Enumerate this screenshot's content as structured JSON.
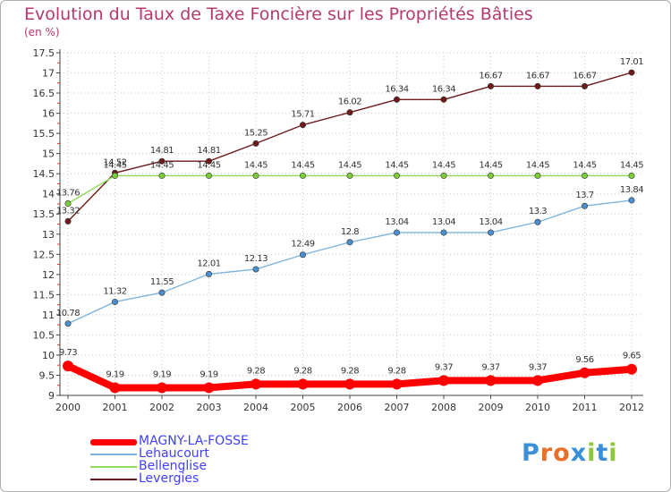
{
  "chart_data": {
    "type": "line",
    "title": "Evolution du Taux de Taxe Foncière sur les Propriétés Bâties",
    "unit": "(en %)",
    "xlabel": "",
    "ylabel": "",
    "ylim": [
      9,
      17.5
    ],
    "yticks": [
      "9",
      "9.5",
      "10",
      "10.5",
      "11",
      "11.5",
      "12",
      "12.5",
      "13",
      "13.5",
      "14",
      "14.5",
      "15",
      "15.5",
      "16",
      "16.5",
      "17",
      "17.5"
    ],
    "categories": [
      "2000",
      "2001",
      "2002",
      "2003",
      "2004",
      "2005",
      "2006",
      "2007",
      "2008",
      "2009",
      "2010",
      "2011",
      "2012"
    ],
    "series": [
      {
        "name": "Levergies",
        "color": "#6e1a1a",
        "marker": "#6e1a1a",
        "values": [
          13.32,
          14.52,
          14.81,
          14.81,
          15.25,
          15.71,
          16.02,
          16.34,
          16.34,
          16.67,
          16.67,
          16.67,
          17.01
        ],
        "labels": [
          "13.32",
          "14.52",
          "14.81",
          "14.81",
          "15.25",
          "15.71",
          "16.02",
          "16.34",
          "16.34",
          "16.67",
          "16.67",
          "16.67",
          "17.01"
        ]
      },
      {
        "name": "Bellenglise",
        "color": "#8ed85a",
        "marker": "#7ccc3a",
        "values": [
          13.76,
          14.45,
          14.45,
          14.45,
          14.45,
          14.45,
          14.45,
          14.45,
          14.45,
          14.45,
          14.45,
          14.45,
          14.45
        ],
        "labels": [
          "13.76",
          "14.45",
          "14.45",
          "14.45",
          "14.45",
          "14.45",
          "14.45",
          "14.45",
          "14.45",
          "14.45",
          "14.45",
          "14.45",
          "14.45"
        ]
      },
      {
        "name": "Lehaucourt",
        "color": "#7fb4dc",
        "marker": "#4a8fd0",
        "values": [
          10.78,
          11.32,
          11.55,
          12.01,
          12.13,
          12.49,
          12.8,
          13.04,
          13.04,
          13.04,
          13.3,
          13.7,
          13.84
        ],
        "labels": [
          "10.78",
          "11.32",
          "11.55",
          "12.01",
          "12.13",
          "12.49",
          "12.8",
          "13.04",
          "13.04",
          "13.04",
          "13.3",
          "13.7",
          "13.84"
        ]
      },
      {
        "name": "MAGNY-LA-FOSSE",
        "color": "#ff0000",
        "marker": "#ff0000",
        "values": [
          9.73,
          9.19,
          9.19,
          9.19,
          9.28,
          9.28,
          9.28,
          9.28,
          9.37,
          9.37,
          9.37,
          9.56,
          9.65
        ],
        "labels": [
          "9.73",
          "9.19",
          "9.19",
          "9.19",
          "9.28",
          "9.28",
          "9.28",
          "9.28",
          "9.37",
          "9.37",
          "9.37",
          "9.56",
          "9.65"
        ]
      }
    ],
    "legend": [
      {
        "name": "MAGNY-LA-FOSSE",
        "color": "#ff0000",
        "text_color": "#4040ff",
        "thick": true
      },
      {
        "name": "Lehaucourt",
        "color": "#7fb4dc",
        "text_color": "#4040ff",
        "thick": false
      },
      {
        "name": "Bellenglise",
        "color": "#8ed85a",
        "text_color": "#4040ff",
        "thick": false
      },
      {
        "name": "Levergies",
        "color": "#6e1a1a",
        "text_color": "#4040ff",
        "thick": false
      }
    ]
  },
  "brand": {
    "logo_text": "Proxiti",
    "letter_colors": [
      "#3a8fd8",
      "#e8702a",
      "#e8702a",
      "#3a8fd8",
      "#8cc83c",
      "#3a8fd8",
      "#8cc83c"
    ]
  }
}
